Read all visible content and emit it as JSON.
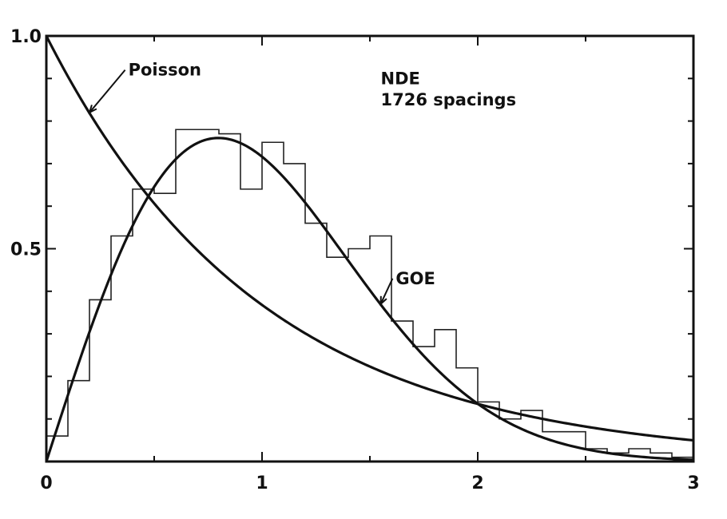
{
  "chart_data": {
    "type": "line",
    "title": "",
    "xlabel": "",
    "ylabel": "",
    "xlim": [
      0,
      3
    ],
    "ylim": [
      0,
      1.0
    ],
    "x_ticks": [
      0,
      1,
      2,
      3
    ],
    "x_tick_labels": [
      "0",
      "1",
      "2",
      "3"
    ],
    "y_ticks": [
      0.5,
      1.0
    ],
    "y_tick_labels": [
      "0.5",
      "1.0"
    ],
    "grid": false,
    "legend": "none",
    "annotations": [
      {
        "text": "NDE",
        "x": 1.55,
        "y": 0.9
      },
      {
        "text": "1726  spacings",
        "x": 1.55,
        "y": 0.85
      },
      {
        "text": "Poisson",
        "x": 0.38,
        "y": 0.92,
        "points_to": [
          0.2,
          0.82
        ]
      },
      {
        "text": "GOE",
        "x": 1.62,
        "y": 0.43,
        "points_to": [
          1.55,
          0.37
        ]
      }
    ],
    "series": [
      {
        "name": "Poisson",
        "kind": "curve",
        "formula": "exp(-s)"
      },
      {
        "name": "GOE",
        "kind": "curve",
        "formula": "(pi/2) s exp(-pi s^2 / 4)"
      },
      {
        "name": "NDE",
        "kind": "histogram",
        "bin_width": 0.1,
        "bin_edges_start": 0,
        "values": [
          0.06,
          0.19,
          0.38,
          0.53,
          0.64,
          0.63,
          0.78,
          0.78,
          0.77,
          0.64,
          0.75,
          0.7,
          0.56,
          0.48,
          0.5,
          0.53,
          0.33,
          0.27,
          0.31,
          0.22,
          0.14,
          0.1,
          0.12,
          0.07,
          0.07,
          0.03,
          0.02,
          0.03,
          0.02,
          0.01
        ]
      }
    ]
  }
}
